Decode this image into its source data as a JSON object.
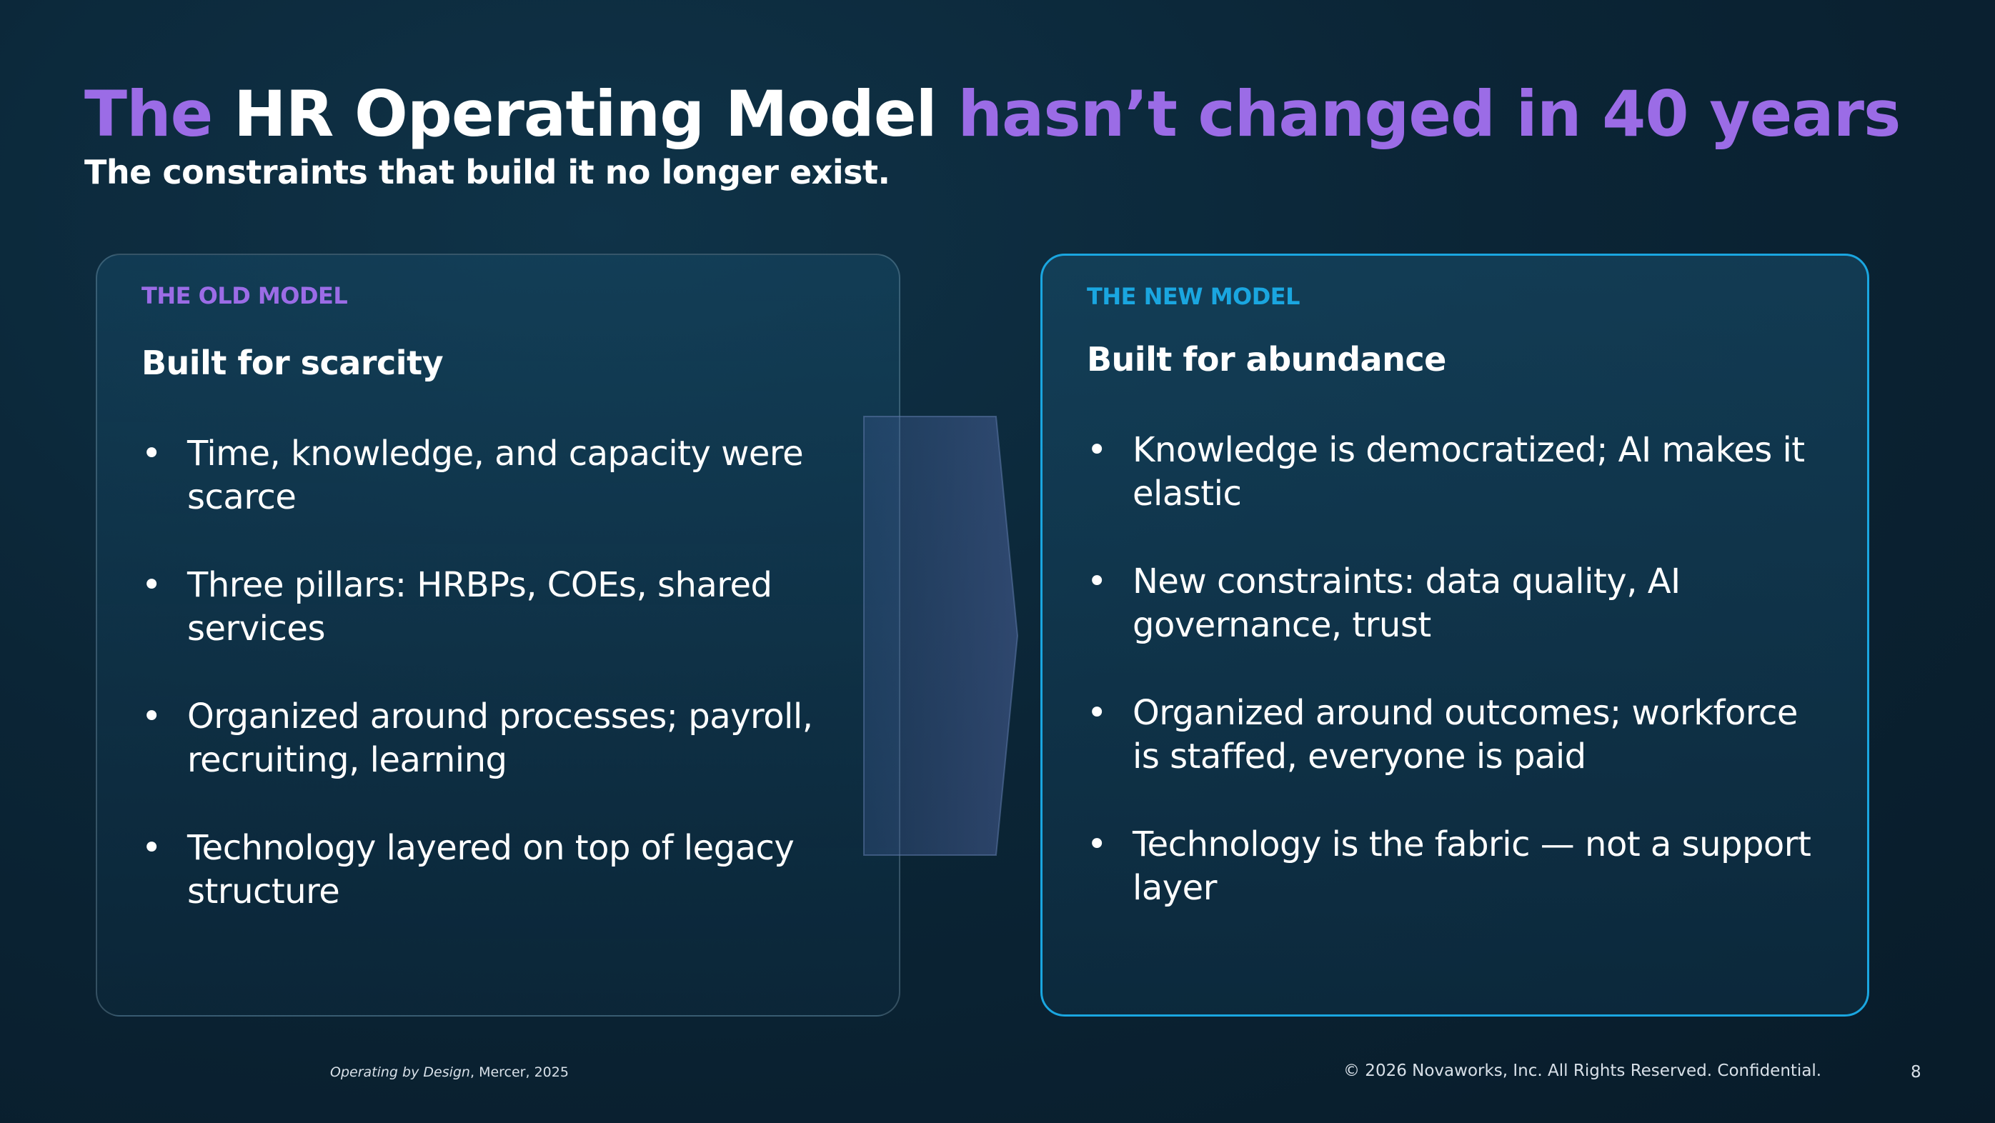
{
  "slide": {
    "title": {
      "part1": "The",
      "part2": "HR Operating Model",
      "part3": "hasn’t changed in 40 years"
    },
    "subtitle": "The constraints that build it no longer exist.",
    "old_model": {
      "label": "THE OLD MODEL",
      "heading": "Built for scarcity",
      "bullets": [
        "Time, knowledge, and capacity were scarce",
        "Three pillars: HRBPs, COEs, shared services",
        "Organized around processes; payroll, recruiting, learning",
        "Technology layered on top of legacy structure"
      ]
    },
    "new_model": {
      "label": "THE NEW MODEL",
      "heading": "Built for abundance",
      "bullets": [
        "Knowledge is democratized; AI makes it elastic",
        "New constraints: data quality, AI governance, trust",
        "Organized around outcomes; workforce is staffed, everyone is paid",
        "Technology is the fabric — not a support layer"
      ]
    },
    "bullet_glyph": "•",
    "footer": {
      "source_title": "Operating by Design",
      "source_rest": ", Mercer, 2025",
      "copyright": "© 2026 Novaworks, Inc. All Rights Reserved. Confidential.",
      "page_number": "8"
    },
    "colors": {
      "accent_purple": "#9b6ce6",
      "accent_blue": "#1aa6e0",
      "background": "#0b2536"
    }
  }
}
